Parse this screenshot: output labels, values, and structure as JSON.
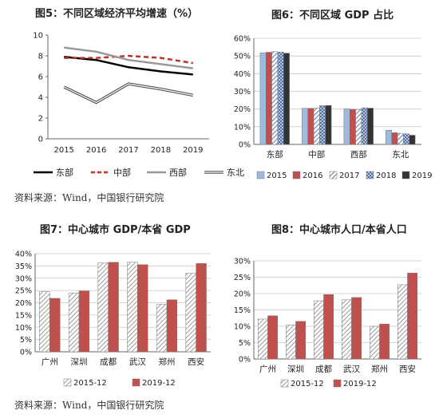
{
  "panels": [
    {
      "title": "图5：不同区域经济平均增速（%）",
      "chart_data": {
        "type": "line",
        "x": [
          "2015",
          "2016",
          "2017",
          "2018",
          "2019"
        ],
        "ylim": [
          0,
          10
        ],
        "yticks": [
          "0",
          "2",
          "4",
          "6",
          "8",
          "10"
        ],
        "series": [
          {
            "name": "东部",
            "values": [
              7.9,
              7.6,
              6.9,
              6.5,
              6.2
            ],
            "color": "#000000",
            "style": "solid"
          },
          {
            "name": "中部",
            "values": [
              7.8,
              7.8,
              8.0,
              7.8,
              7.3
            ],
            "color": "#c0312b",
            "style": "dashed"
          },
          {
            "name": "西部",
            "values": [
              8.8,
              8.4,
              7.6,
              7.2,
              6.8
            ],
            "color": "#999999",
            "style": "solid"
          },
          {
            "name": "东北",
            "values": [
              5.0,
              3.5,
              5.3,
              4.8,
              4.2
            ],
            "color": "#555555",
            "style": "double"
          }
        ],
        "grid": false,
        "legend": "bottom"
      }
    },
    {
      "title": "图6：不同区域 GDP 占比",
      "chart_data": {
        "type": "bar",
        "categories": [
          "东部",
          "中部",
          "西部",
          "东北"
        ],
        "ylim": [
          0,
          0.6
        ],
        "yticks": [
          "0%",
          "10%",
          "20%",
          "30%",
          "40%",
          "50%",
          "60%"
        ],
        "series": [
          {
            "name": "2015",
            "values": [
              0.518,
              0.204,
              0.201,
              0.08
            ],
            "color": "#9dbbe0",
            "pattern": "solid"
          },
          {
            "name": "2016",
            "values": [
              0.521,
              0.204,
              0.198,
              0.066
            ],
            "color": "#c0504d",
            "pattern": "solid"
          },
          {
            "name": "2017",
            "values": [
              0.525,
              0.206,
              0.197,
              0.063
            ],
            "color": "#6f8fb8",
            "pattern": "hatch"
          },
          {
            "name": "2018",
            "values": [
              0.522,
              0.219,
              0.207,
              0.06
            ],
            "color": "#4a6fa5",
            "pattern": "cross"
          },
          {
            "name": "2019",
            "values": [
              0.516,
              0.22,
              0.205,
              0.052
            ],
            "color": "#333333",
            "pattern": "solid"
          }
        ],
        "legend": "bottom"
      }
    },
    {
      "title": "图7：中心城市 GDP/本省 GDP",
      "chart_data": {
        "type": "bar",
        "categories": [
          "广州",
          "深圳",
          "成都",
          "武汉",
          "郑州",
          "西安"
        ],
        "ylim": [
          0,
          0.4
        ],
        "yticks": [
          "0%",
          "5%",
          "10%",
          "15%",
          "20%",
          "25%",
          "30%",
          "35%",
          "40%"
        ],
        "series": [
          {
            "name": "2015-12",
            "values": [
              0.245,
              0.24,
              0.362,
              0.365,
              0.193,
              0.32
            ],
            "color": "#bbbbbb",
            "pattern": "hatch"
          },
          {
            "name": "2019-12",
            "values": [
              0.218,
              0.248,
              0.365,
              0.355,
              0.212,
              0.36
            ],
            "color": "#c0504d",
            "pattern": "solid"
          }
        ],
        "legend": "bottom"
      }
    },
    {
      "title": "图8：中心城市人口/本省人口",
      "chart_data": {
        "type": "bar",
        "categories": [
          "广州",
          "深圳",
          "成都",
          "武汉",
          "郑州",
          "西安"
        ],
        "ylim": [
          0,
          0.3
        ],
        "yticks": [
          "0%",
          "5%",
          "10%",
          "15%",
          "20%",
          "25%",
          "30%"
        ],
        "series": [
          {
            "name": "2015-12",
            "values": [
              0.122,
              0.104,
              0.178,
              0.181,
              0.1,
              0.227
            ],
            "color": "#bbbbbb",
            "pattern": "hatch"
          },
          {
            "name": "2019-12",
            "values": [
              0.132,
              0.115,
              0.197,
              0.188,
              0.107,
              0.263
            ],
            "color": "#c0504d",
            "pattern": "solid"
          }
        ],
        "legend": "bottom"
      }
    }
  ],
  "sources": [
    "资料来源：Wind，中国银行研究院",
    "资料来源：Wind，中国银行研究院"
  ]
}
